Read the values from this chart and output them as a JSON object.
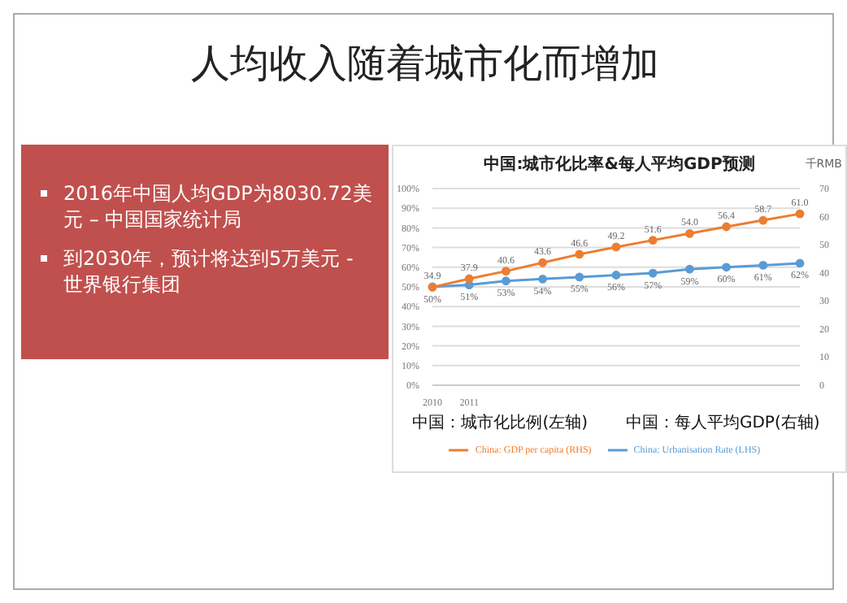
{
  "chart_data": [
    {
      "type": "other",
      "title": "人均收入随着城市化而增加",
      "annotations": [
        "2016年中国人均GDP为8030.72美元 – 中国国家统计局",
        "到2030年，预计将达到5万美元 - 世界银行集团"
      ]
    },
    {
      "type": "line",
      "title": "中国:城市化比率&每人平均GDP预测",
      "y2label": "千RMB",
      "categories": [
        "2010",
        "2011",
        null,
        null,
        null,
        null,
        null,
        null,
        null,
        null,
        null
      ],
      "series": [
        {
          "name": "China: Urbanisation Rate (LHS)",
          "color": "#5b9bd5",
          "values": [
            50,
            51,
            53,
            54,
            55,
            56,
            57,
            59,
            60,
            61,
            62
          ],
          "value_labels": [
            "50%",
            "51%",
            "53%",
            "54%",
            "55%",
            "56%",
            "57%",
            "59%",
            "60%",
            "61%",
            "62%"
          ]
        },
        {
          "name": "China: GDP per capita (RHS)",
          "color": "#ed7d31",
          "axis": "y2",
          "values": [
            34.9,
            37.9,
            40.6,
            43.6,
            46.6,
            49.2,
            51.6,
            54.0,
            56.4,
            58.7,
            61.0
          ],
          "value_labels": [
            "34.9",
            "37.9",
            "40.6",
            "43.6",
            "46.6",
            "49.2",
            "51.6",
            "54.0",
            "56.4",
            "58.7",
            "61.0"
          ]
        }
      ],
      "ylim": [
        0,
        100
      ],
      "yticks": [
        {
          "value": 0,
          "label": "0%"
        },
        {
          "value": 10,
          "label": "10%"
        },
        {
          "value": 20,
          "label": "20%"
        },
        {
          "value": 30,
          "label": "30%"
        },
        {
          "value": 40,
          "label": "40%"
        },
        {
          "value": 50,
          "label": "50%"
        },
        {
          "value": 60,
          "label": "60%"
        },
        {
          "value": 70,
          "label": "70%"
        },
        {
          "value": 80,
          "label": "80%"
        },
        {
          "value": 90,
          "label": "90%"
        },
        {
          "value": 100,
          "label": "100%"
        }
      ],
      "y2lim": [
        0,
        70
      ],
      "y2ticks": [
        0,
        10,
        20,
        30,
        40,
        50,
        60,
        70
      ],
      "grid": "y",
      "legend": "bottom",
      "marker": "circle",
      "line_style": "solid",
      "annotations": [
        "中国：城市化比例(左轴)",
        "中国：每人平均GDP(右轴)"
      ]
    }
  ]
}
